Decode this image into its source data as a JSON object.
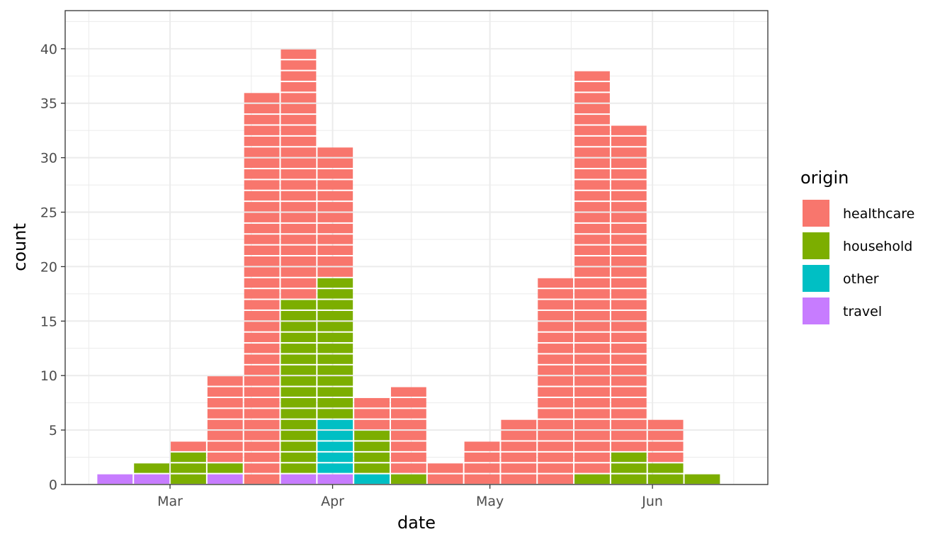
{
  "chart_data": {
    "type": "bar",
    "stacked": true,
    "xlabel": "date",
    "ylabel": "count",
    "ylim": [
      0,
      43.5
    ],
    "yticks": [
      0,
      5,
      10,
      15,
      20,
      25,
      30,
      35,
      40
    ],
    "xticks": [
      {
        "date": "2020-03-01",
        "label": "Mar"
      },
      {
        "date": "2020-04-01",
        "label": "Apr"
      },
      {
        "date": "2020-05-01",
        "label": "May"
      },
      {
        "date": "2020-06-01",
        "label": "Jun"
      }
    ],
    "xlim": [
      "2020-02-10",
      "2020-06-23"
    ],
    "bin_width_days": 7,
    "grid": true,
    "legend": {
      "title": "origin",
      "position": "right",
      "items": [
        {
          "name": "healthcare",
          "color": "#F8766D"
        },
        {
          "name": "household",
          "color": "#7CAE00"
        },
        {
          "name": "other",
          "color": "#00BFC4"
        },
        {
          "name": "travel",
          "color": "#C77CFF"
        }
      ]
    },
    "categories": [
      "2020-02-16",
      "2020-02-23",
      "2020-03-01",
      "2020-03-08",
      "2020-03-15",
      "2020-03-22",
      "2020-03-29",
      "2020-04-05",
      "2020-04-12",
      "2020-04-19",
      "2020-04-26",
      "2020-05-03",
      "2020-05-10",
      "2020-05-17",
      "2020-05-24",
      "2020-05-31",
      "2020-06-07"
    ],
    "series": [
      {
        "name": "travel",
        "values": [
          1,
          1,
          0,
          1,
          0,
          1,
          1,
          0,
          0,
          0,
          0,
          0,
          0,
          0,
          0,
          0,
          0
        ]
      },
      {
        "name": "other",
        "values": [
          0,
          0,
          0,
          0,
          0,
          0,
          5,
          1,
          0,
          0,
          0,
          0,
          0,
          0,
          0,
          0,
          0
        ]
      },
      {
        "name": "household",
        "values": [
          0,
          1,
          3,
          1,
          0,
          16,
          13,
          4,
          1,
          0,
          0,
          0,
          0,
          1,
          3,
          2,
          1
        ]
      },
      {
        "name": "healthcare",
        "values": [
          0,
          0,
          1,
          8,
          36,
          23,
          12,
          3,
          8,
          2,
          4,
          6,
          19,
          37,
          30,
          4,
          0
        ]
      }
    ]
  }
}
